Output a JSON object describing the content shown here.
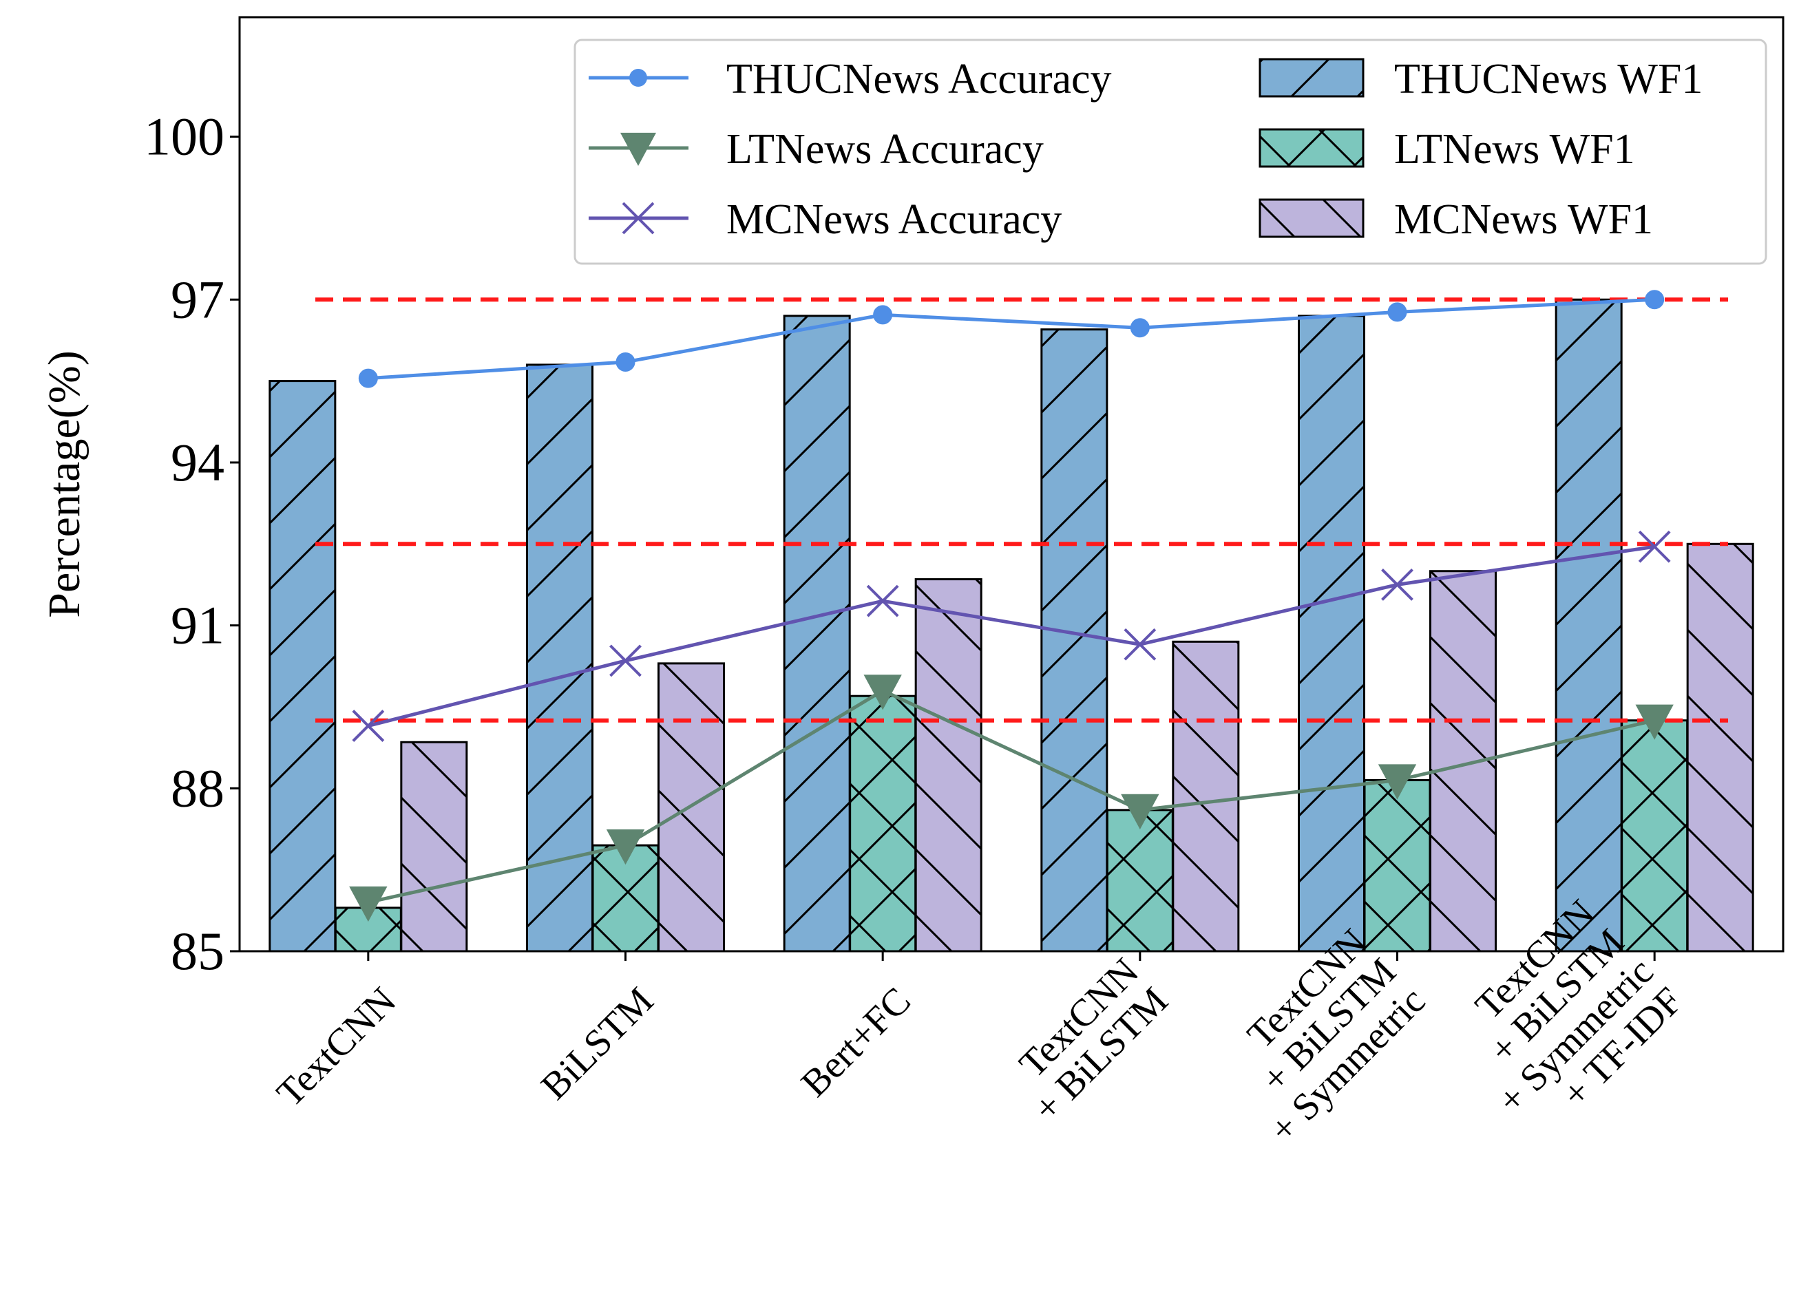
{
  "chart_data": {
    "type": "bar",
    "categories": [
      [
        "TextCNN"
      ],
      [
        "BiLSTM"
      ],
      [
        "Bert+FC"
      ],
      [
        "TextCNN",
        "+ BiLSTM"
      ],
      [
        "TextCNN",
        "+ BiLSTM",
        "+ Symmetric"
      ],
      [
        "TextCNN",
        "+ BiLSTM",
        "+ Symmetric",
        "+ TF-IDF"
      ]
    ],
    "ylabel": "Percentage(%)",
    "ylim": [
      85,
      102.2
    ],
    "yticks": [
      85,
      88,
      91,
      94,
      97,
      100
    ],
    "bar_series": [
      {
        "name": "THUCNews WF1",
        "values": [
          95.5,
          95.8,
          96.7,
          96.45,
          96.7,
          97.0
        ],
        "color": "#7eaed4",
        "hatch": "/"
      },
      {
        "name": "LTNews WF1",
        "values": [
          85.8,
          86.95,
          89.7,
          87.6,
          88.15,
          89.25
        ],
        "color": "#7cc7bd",
        "hatch": "x"
      },
      {
        "name": "MCNews WF1",
        "values": [
          88.85,
          90.3,
          91.85,
          90.7,
          92.0,
          92.5
        ],
        "color": "#bdb4dc",
        "hatch": "\\"
      }
    ],
    "line_series": [
      {
        "name": "THUCNews Accuracy",
        "values": [
          95.55,
          95.85,
          96.72,
          96.48,
          96.77,
          97.0
        ],
        "color": "#4f8ee6",
        "marker": "circle"
      },
      {
        "name": "LTNews Accuracy",
        "values": [
          85.9,
          86.95,
          89.8,
          87.6,
          88.15,
          89.25
        ],
        "color": "#5e8570",
        "marker": "triangle-down"
      },
      {
        "name": "MCNews Accuracy",
        "values": [
          89.15,
          90.35,
          91.45,
          90.65,
          91.75,
          92.45
        ],
        "color": "#6254b0",
        "marker": "x"
      }
    ],
    "reference_lines": [
      {
        "value": 97.0,
        "color": "#ff1a1a",
        "style": "dashed"
      },
      {
        "value": 92.5,
        "color": "#ff1a1a",
        "style": "dashed"
      },
      {
        "value": 89.25,
        "color": "#ff1a1a",
        "style": "dashed"
      }
    ],
    "legend_position": "top-right",
    "grid": false
  }
}
